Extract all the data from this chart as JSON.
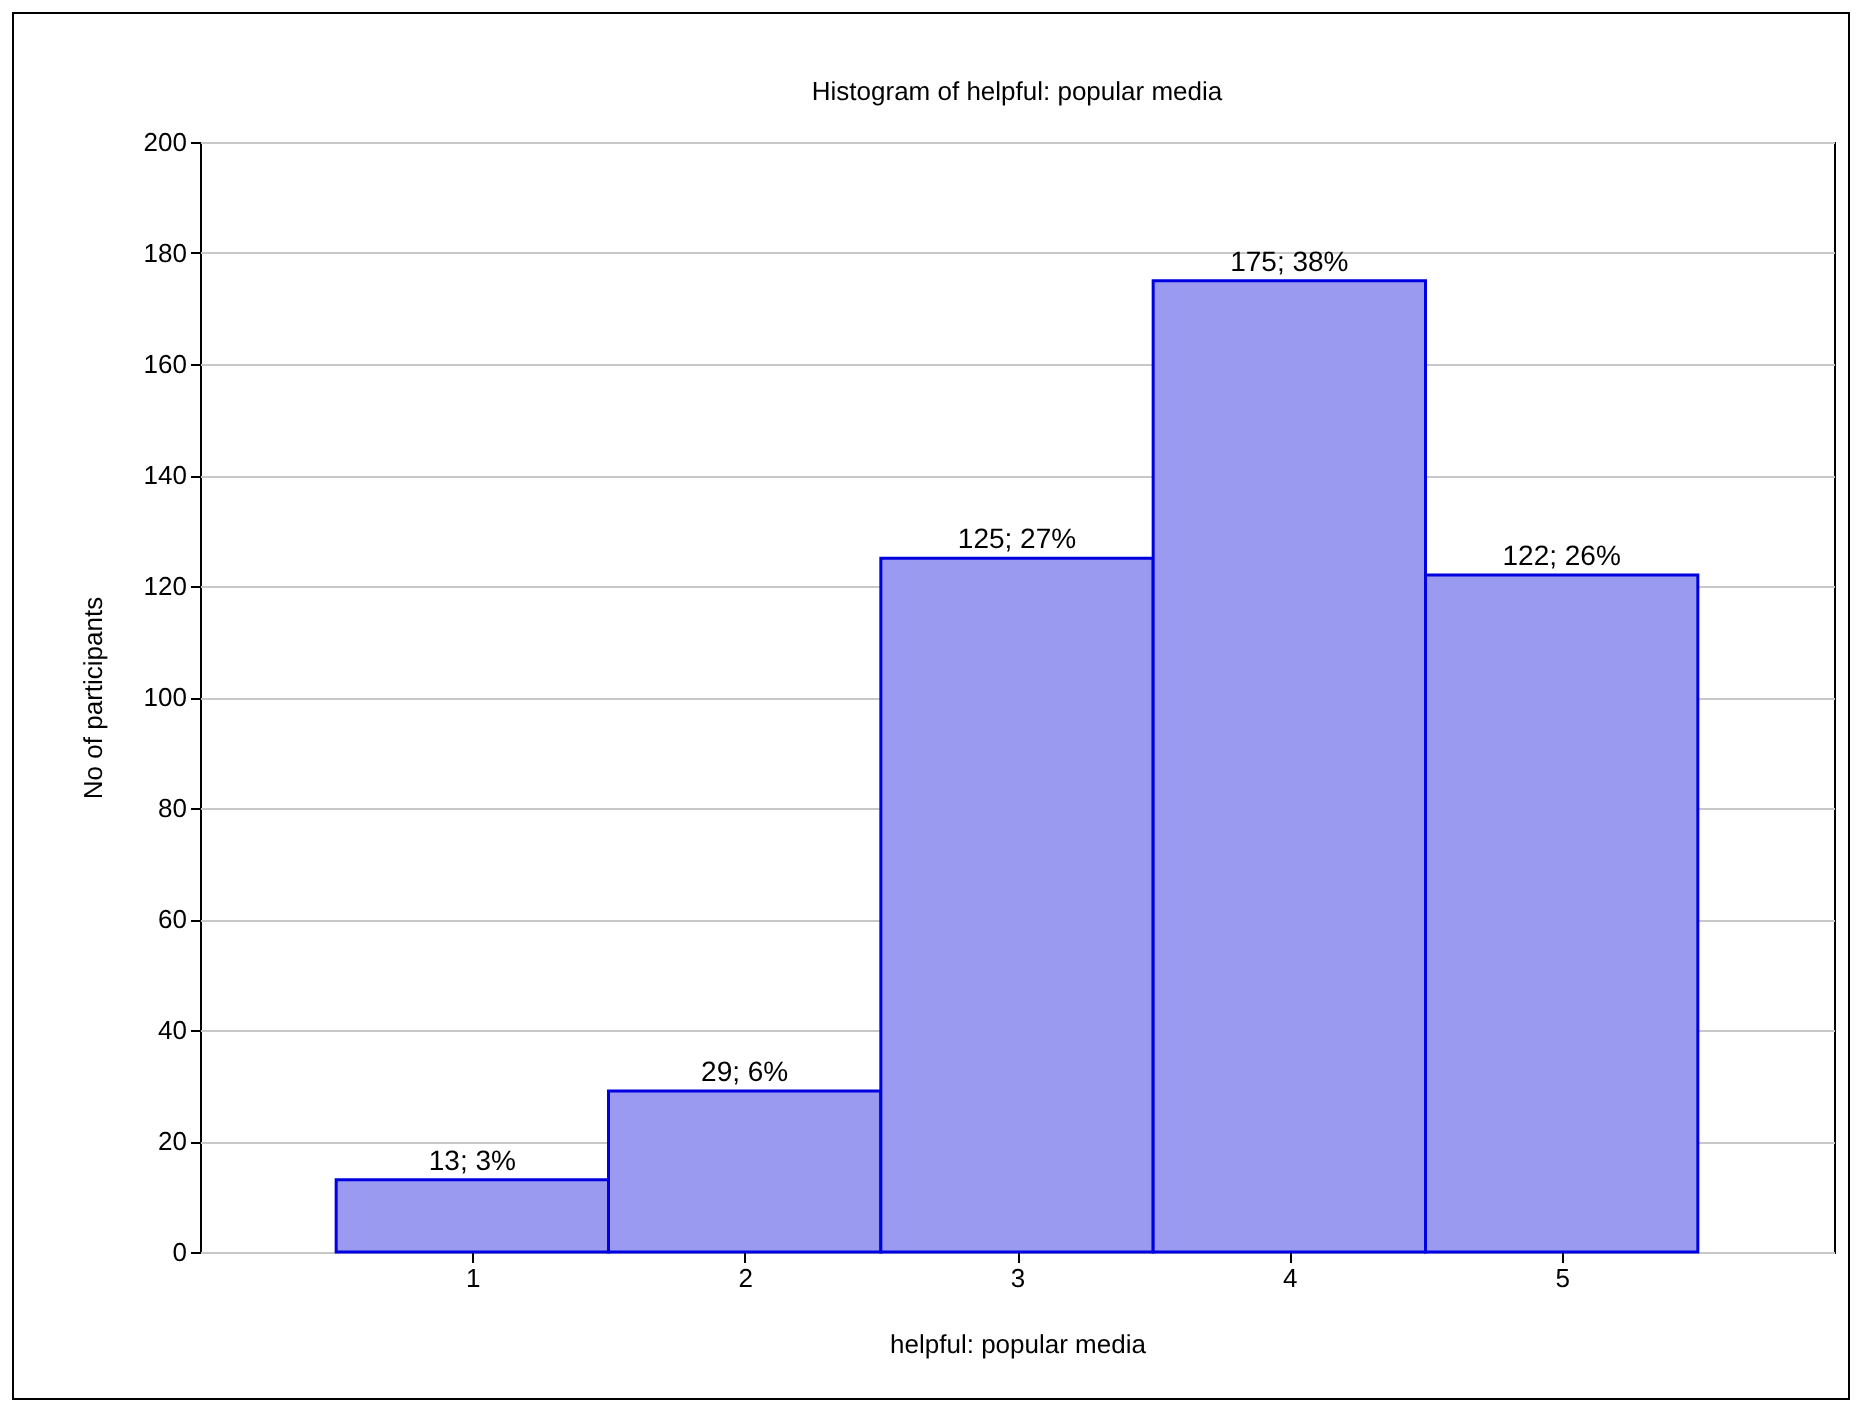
{
  "chart_data": {
    "type": "histogram",
    "title": "Histogram of helpful: popular media",
    "xlabel": "helpful: popular media",
    "ylabel": "No of participants",
    "bins": [
      0.5,
      1.5,
      2.5,
      3.5,
      4.5,
      5.5
    ],
    "values": [
      13,
      29,
      125,
      175,
      122
    ],
    "value_labels": [
      "13; 3%",
      "29; 6%",
      "125; 27%",
      "175; 38%",
      "122; 26%"
    ],
    "color": "#9a9af0",
    "xlim": [
      0,
      6
    ],
    "xticks": [
      1,
      2,
      3,
      4,
      5
    ],
    "ylim": [
      0,
      200
    ],
    "yticks": [
      0,
      20,
      40,
      60,
      80,
      100,
      120,
      140,
      160,
      180,
      200
    ],
    "grid": "y"
  }
}
